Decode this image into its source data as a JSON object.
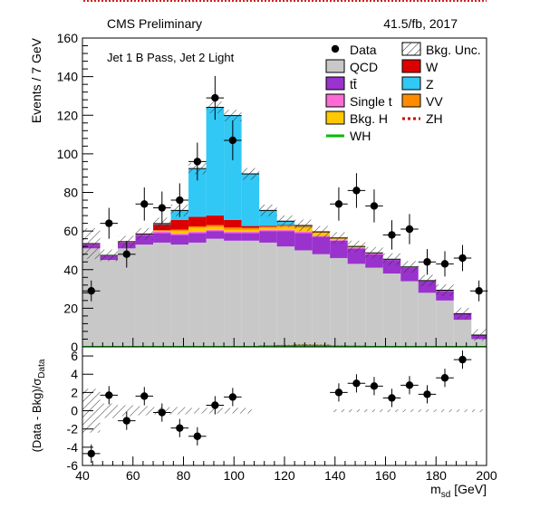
{
  "header": {
    "left": "CMS Preliminary",
    "right": "41.5/fb, 2017"
  },
  "category_label": "Jet 1 B Pass, Jet 2 Light",
  "chart_data": [
    {
      "type": "stacked_histogram",
      "role": "main",
      "ylabel": "Events / 7 GeV",
      "xlim": [
        40,
        200
      ],
      "ylim": [
        0,
        160
      ],
      "yticks": [
        0,
        20,
        40,
        60,
        80,
        100,
        120,
        140,
        160
      ],
      "bin_edges": [
        40,
        47,
        54,
        61,
        68,
        75,
        82,
        89,
        96,
        103,
        110,
        117,
        124,
        131,
        138,
        145,
        152,
        159,
        166,
        173,
        180,
        187,
        194,
        200
      ],
      "stack_order_bottom_to_top": [
        "QCD",
        "tt",
        "Single t",
        "Bkg. H",
        "VV",
        "W",
        "Z"
      ],
      "series": [
        {
          "name": "QCD",
          "color": "#c8c8c8",
          "values": [
            51,
            45,
            51,
            53,
            54,
            53,
            54,
            56,
            55,
            55,
            54,
            52,
            50,
            48,
            46,
            43,
            41,
            38,
            34,
            28,
            24,
            14,
            4
          ]
        },
        {
          "name": "tt",
          "legend_label": "tt̄",
          "color": "#9a32cd",
          "values": [
            2,
            2,
            3,
            5,
            5,
            5,
            5,
            4,
            4,
            4,
            6,
            8,
            9,
            9,
            9,
            8,
            7,
            7,
            7,
            6,
            5,
            3,
            2
          ]
        },
        {
          "name": "Single t",
          "color": "#ff6ad5",
          "values": [
            0.5,
            0.4,
            0.5,
            0.5,
            0.6,
            0.6,
            0.6,
            0.6,
            0.6,
            0.6,
            0.6,
            0.6,
            0.6,
            0.5,
            0.5,
            0.5,
            0.4,
            0.4,
            0.4,
            0.3,
            0.3,
            0.2,
            0.1
          ]
        },
        {
          "name": "Bkg. H",
          "color": "#ffc800",
          "values": [
            0,
            0,
            0,
            0,
            0.5,
            1.5,
            2,
            1.5,
            1,
            1,
            1,
            1.5,
            2,
            1.5,
            0.5,
            0.3,
            0.2,
            0,
            0,
            0,
            0,
            0,
            0
          ]
        },
        {
          "name": "VV",
          "color": "#ff8c00",
          "values": [
            0,
            0,
            0,
            0,
            0.3,
            0.6,
            0.8,
            1,
            1.2,
            1,
            0.6,
            0.7,
            0.8,
            0.6,
            0.4,
            0.2,
            0.1,
            0,
            0,
            0,
            0,
            0,
            0
          ]
        },
        {
          "name": "W",
          "color": "#dd0000",
          "values": [
            0,
            0,
            0,
            0,
            3,
            5,
            5,
            5,
            4,
            1,
            0.5,
            0.3,
            0,
            0,
            0,
            0,
            0,
            0,
            0,
            0,
            0,
            0,
            0
          ]
        },
        {
          "name": "Z",
          "color": "#31c8f5",
          "values": [
            0,
            0,
            0,
            0,
            0.5,
            5,
            25,
            56,
            54,
            27,
            8,
            2,
            0.5,
            0,
            0,
            0,
            0,
            0,
            0,
            0,
            0,
            0,
            0
          ]
        }
      ],
      "signals": [
        {
          "name": "ZH",
          "color": "#cc0000",
          "style": "dotted",
          "values": [
            0,
            0,
            0,
            0,
            0,
            0,
            0,
            0,
            0,
            0,
            0.3,
            0.5,
            0.8,
            0.7,
            0.3,
            0.1,
            0,
            0,
            0,
            0,
            0,
            0,
            0
          ]
        },
        {
          "name": "WH",
          "color": "#00bb00",
          "style": "solid",
          "values": [
            0,
            0,
            0,
            0,
            0,
            0,
            0,
            0,
            0,
            0,
            0.2,
            0.4,
            0.6,
            0.5,
            0.2,
            0.1,
            0,
            0,
            0,
            0,
            0,
            0,
            0
          ]
        }
      ],
      "bkg_unc": {
        "name": "Bkg. Unc.",
        "style": "hatched",
        "half_widths": [
          8,
          3,
          3,
          3,
          3,
          3,
          3,
          3,
          3,
          3,
          3,
          3,
          3,
          3,
          3,
          3,
          3,
          3,
          3,
          3,
          3,
          3,
          3
        ]
      },
      "data": {
        "name": "Data",
        "x": [
          43.5,
          50.5,
          57.5,
          64.5,
          71.5,
          78.5,
          85.5,
          92.5,
          99.5,
          106.5,
          113.5,
          120.5,
          127.5,
          134.5,
          141.5,
          148.5,
          155.5,
          162.5,
          169.5,
          176.5,
          183.5,
          190.5,
          197
        ],
        "y": [
          29,
          64,
          48,
          74,
          72,
          76,
          96,
          129,
          107,
          null,
          null,
          null,
          null,
          null,
          74,
          81,
          73,
          58,
          61,
          44,
          43,
          46,
          29
        ]
      },
      "legend": {
        "placement": "top-right",
        "columns": 2,
        "entries": [
          "Data",
          "Bkg. Unc.",
          "QCD",
          "W",
          "tt̄",
          "Z",
          "Single t",
          "VV",
          "Bkg. H",
          "ZH",
          "WH"
        ]
      }
    },
    {
      "type": "scatter",
      "role": "ratio",
      "ylabel": "(Data - Bkg)/σData",
      "xlabel": "m_sd [GeV]",
      "xlim": [
        40,
        200
      ],
      "ylim": [
        -6,
        7
      ],
      "yticks": [
        -6,
        -4,
        -2,
        0,
        2,
        4,
        6
      ],
      "xticks": [
        40,
        60,
        80,
        100,
        120,
        140,
        160,
        180,
        200
      ],
      "x": [
        43.5,
        50.5,
        57.5,
        64.5,
        71.5,
        78.5,
        85.5,
        92.5,
        99.5,
        141.5,
        148.5,
        155.5,
        162.5,
        169.5,
        176.5,
        183.5,
        190.5
      ],
      "y": [
        -4.7,
        1.7,
        -1.1,
        1.6,
        -0.2,
        -1.9,
        -2.8,
        0.6,
        1.5,
        2.0,
        3.0,
        2.7,
        1.4,
        2.8,
        1.8,
        3.6,
        5.6
      ],
      "unc_band_bins": [
        {
          "x0": 40,
          "x1": 47,
          "half": 2.4
        },
        {
          "x0": 47,
          "x1": 54,
          "half": 0.8
        },
        {
          "x0": 54,
          "x1": 61,
          "half": 0.6
        },
        {
          "x0": 61,
          "x1": 68,
          "half": 0.5
        },
        {
          "x0": 68,
          "x1": 75,
          "half": 0.4
        },
        {
          "x0": 75,
          "x1": 82,
          "half": 0.4
        },
        {
          "x0": 82,
          "x1": 89,
          "half": 0.3
        },
        {
          "x0": 89,
          "x1": 96,
          "half": 0.3
        },
        {
          "x0": 96,
          "x1": 103,
          "half": 0.3
        },
        {
          "x0": 103,
          "x1": 107,
          "half": 0.3
        },
        {
          "x0": 138,
          "x1": 200,
          "half": 0.15
        }
      ]
    }
  ]
}
